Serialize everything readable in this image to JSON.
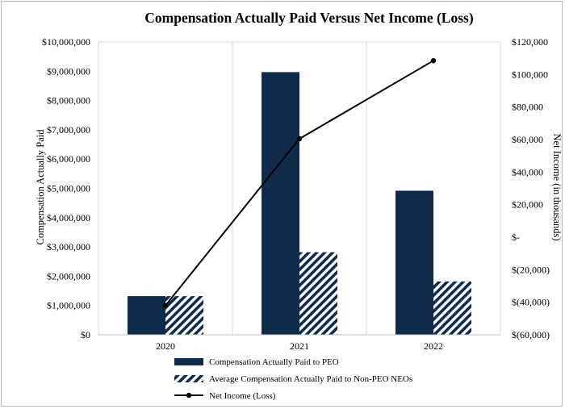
{
  "chart_data": {
    "type": "bar",
    "title": "Compensation Actually Paid Versus Net Income (Loss)",
    "categories": [
      "2020",
      "2021",
      "2022"
    ],
    "ylabel": "Compensation Actually Paid",
    "y2label": "Net Income (in thousands)",
    "ylim": [
      0,
      10000000
    ],
    "y2lim": [
      -60000,
      120000
    ],
    "y_ticks": [
      {
        "value": 0,
        "label": "$0"
      },
      {
        "value": 1000000,
        "label": "$1,000,000"
      },
      {
        "value": 2000000,
        "label": "$2,000,000"
      },
      {
        "value": 3000000,
        "label": "$3,000,000"
      },
      {
        "value": 4000000,
        "label": "$4,000,000"
      },
      {
        "value": 5000000,
        "label": "$5,000,000"
      },
      {
        "value": 6000000,
        "label": "$6,000,000"
      },
      {
        "value": 7000000,
        "label": "$7,000,000"
      },
      {
        "value": 8000000,
        "label": "$8,000,000"
      },
      {
        "value": 9000000,
        "label": "$9,000,000"
      },
      {
        "value": 10000000,
        "label": "$10,000,000"
      }
    ],
    "y2_ticks": [
      {
        "value": -60000,
        "label": "$(60,000)"
      },
      {
        "value": -40000,
        "label": "$(40,000)"
      },
      {
        "value": -20000,
        "label": "$(20,000)"
      },
      {
        "value": 0,
        "label": "$-"
      },
      {
        "value": 20000,
        "label": "$20,000"
      },
      {
        "value": 40000,
        "label": "$40,000"
      },
      {
        "value": 60000,
        "label": "$60,000"
      },
      {
        "value": 80000,
        "label": "$80,000"
      },
      {
        "value": 100000,
        "label": "$100,000"
      },
      {
        "value": 120000,
        "label": "$120,000"
      }
    ],
    "grid": "vertical",
    "legend_position": "bottom",
    "series": [
      {
        "name": "Compensation Actually Paid to PEO",
        "type": "bar",
        "axis": "left",
        "style": "solid",
        "color": "#0f2a4a",
        "values": [
          1320000,
          8970000,
          4920000
        ]
      },
      {
        "name": "Average Compensation Actually Paid to Non-PEO NEOs",
        "type": "bar",
        "axis": "left",
        "style": "hatched",
        "color": "#0f2a4a",
        "values": [
          1320000,
          2820000,
          1820000
        ]
      },
      {
        "name": "Net Income (Loss)",
        "type": "line",
        "axis": "right",
        "color": "#000000",
        "values": [
          -42000,
          60500,
          108500
        ]
      }
    ]
  }
}
